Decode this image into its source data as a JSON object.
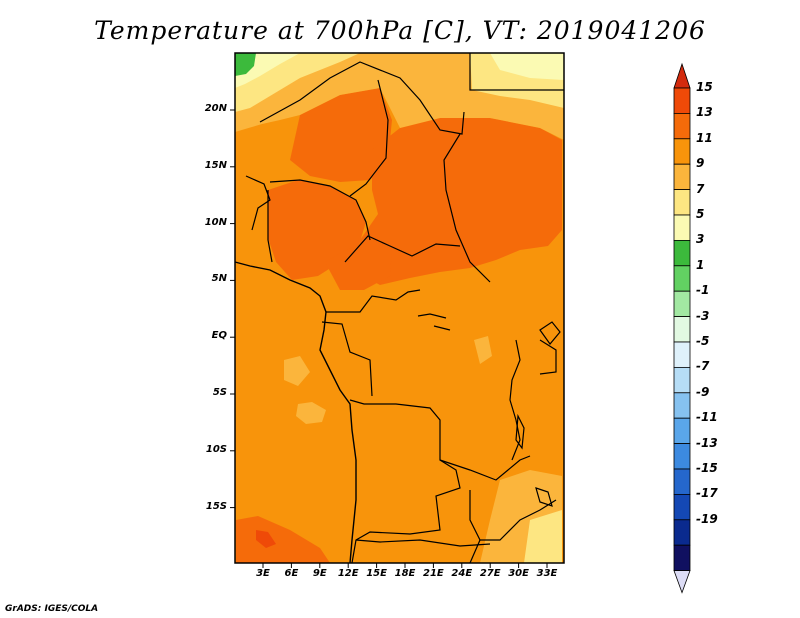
{
  "title": "Temperature at 700hPa [C], VT: 2019041206",
  "credit": "GrADS: IGES/COLA",
  "map": {
    "lat_ticks": [
      "20N",
      "15N",
      "10N",
      "5N",
      "EQ",
      "5S",
      "10S",
      "15S"
    ],
    "lon_ticks": [
      "3E",
      "6E",
      "9E",
      "12E",
      "15E",
      "18E",
      "21E",
      "24E",
      "27E",
      "30E",
      "33E"
    ]
  },
  "colorbar": {
    "labels": [
      "15",
      "13",
      "11",
      "9",
      "7",
      "5",
      "3",
      "1",
      "-1",
      "-3",
      "-5",
      "-7",
      "-9",
      "-11",
      "-13",
      "-15",
      "-17",
      "-19"
    ],
    "colors": [
      "#d32b0e",
      "#ef4a08",
      "#f56b0a",
      "#f8940b",
      "#fbb53c",
      "#fde682",
      "#fbfab3",
      "#3cba3c",
      "#62d162",
      "#a2e8a2",
      "#e2f9e2",
      "#dff1fb",
      "#b6ddf6",
      "#86c2f0",
      "#5aa6ea",
      "#3c8ae0",
      "#2567cc",
      "#1448b4",
      "#0a2a8e",
      "#101060",
      "#dcdcf5"
    ]
  }
}
